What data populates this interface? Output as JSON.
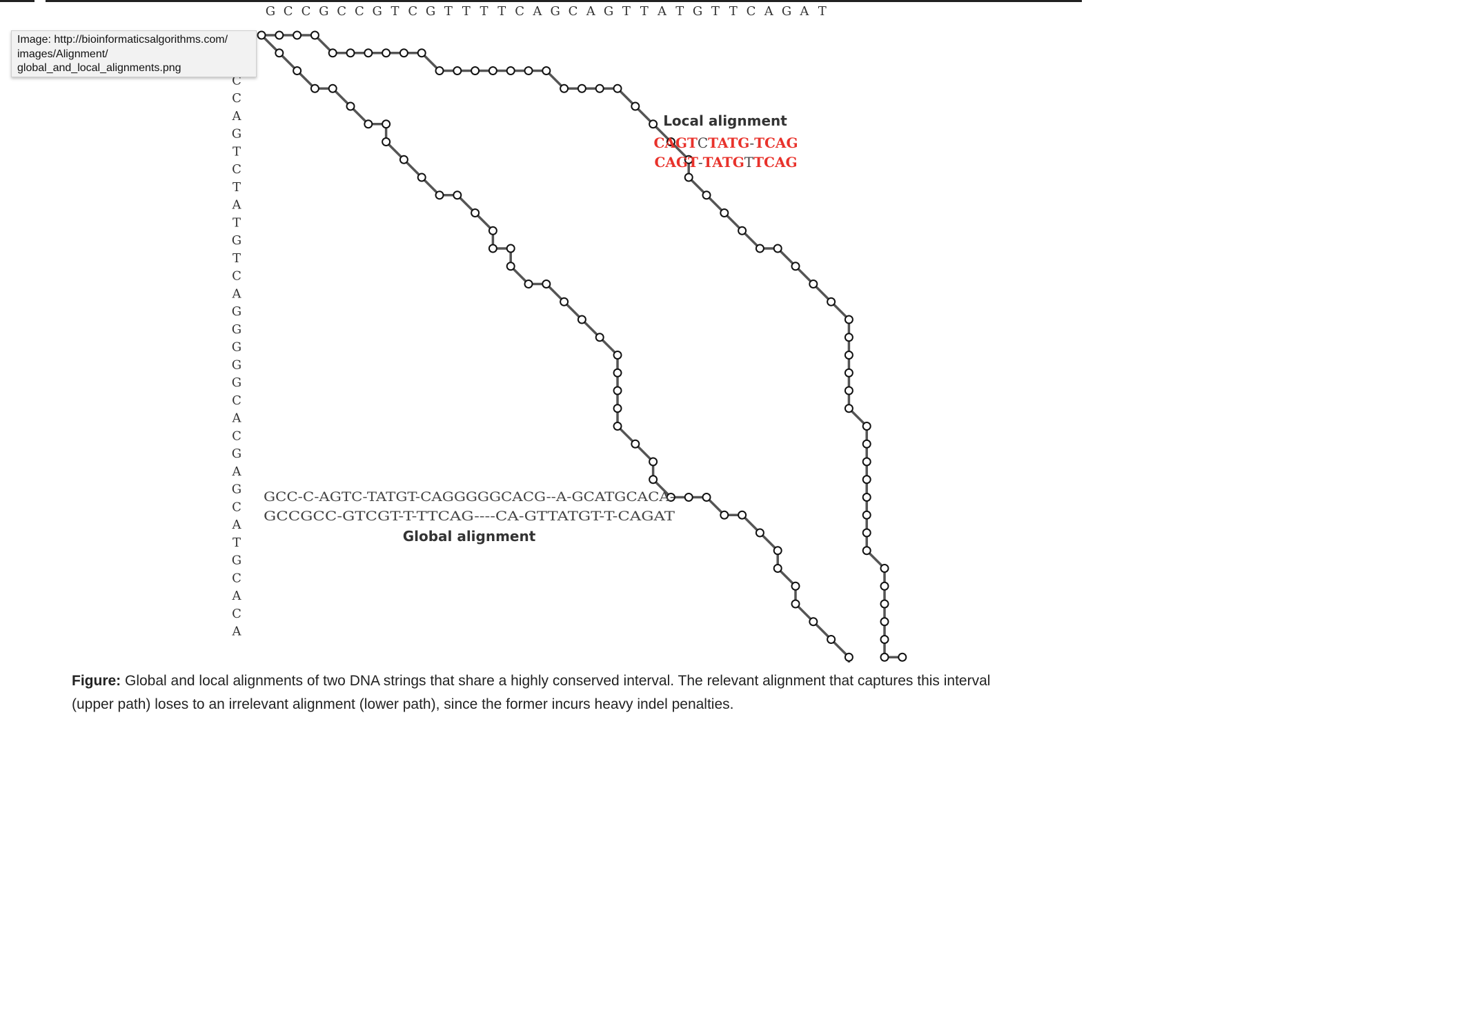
{
  "tooltip": {
    "lines": [
      "Image: http://bioinformaticsalgorithms.com/",
      "images/Alignment/",
      "global_and_local_alignments.png"
    ]
  },
  "diagram": {
    "top_sequence": "GCCGCCGTCGTTTTCAGCAGTTATGTTCAGAT",
    "left_sequence": "GCCCAGTCTATGTCAGGGGGCACGAGCATGCACA",
    "upper_path_moves": "RRRDRRRRRDRRRRRRDRRRDDDRDDDDRDDDDDDDDRDDDDDDDDDDRDDDDDDDDD",
    "lower_path_moves": "DDDDRDDRDDDDDRDRDDRDDDDDDRDDDRRRDRDDRDDDDDDRDDRDRDDDDDRDDDDDRRR",
    "local_highlight_start_step": 17,
    "local_highlight_end_step": 31,
    "colors": {
      "path": "#555555",
      "highlight": "#e8322b",
      "node_fill": "#ffffff",
      "node_stroke": "#111111",
      "label_gray": "#444444"
    },
    "local_alignment": {
      "title": "Local alignment",
      "line1": [
        {
          "t": "CAGT",
          "c": "red"
        },
        {
          "t": "C",
          "c": "gray"
        },
        {
          "t": "TATG",
          "c": "red"
        },
        {
          "t": "-",
          "c": "gray"
        },
        {
          "t": "TCAG",
          "c": "red"
        }
      ],
      "line2": [
        {
          "t": "CAGT",
          "c": "red"
        },
        {
          "t": "-",
          "c": "gray"
        },
        {
          "t": "TATG",
          "c": "red"
        },
        {
          "t": "T",
          "c": "gray"
        },
        {
          "t": "TCAG",
          "c": "red"
        }
      ]
    },
    "global_alignment": {
      "title": "Global alignment",
      "line1": "GCC-C-AGTC-TATGT-CAGGGGGCACG--A-GCATGCACA-",
      "line2": "GCCGCC-GTCGT-T-TTCAG----CA-GTTATGT-T-CAGAT"
    }
  },
  "caption": {
    "label": "Figure:",
    "text": " Global and local alignments of two DNA strings that share a highly conserved interval. The relevant alignment that captures this interval (upper path) loses to an irrelevant alignment (lower path), since the former incurs heavy indel penalties."
  }
}
